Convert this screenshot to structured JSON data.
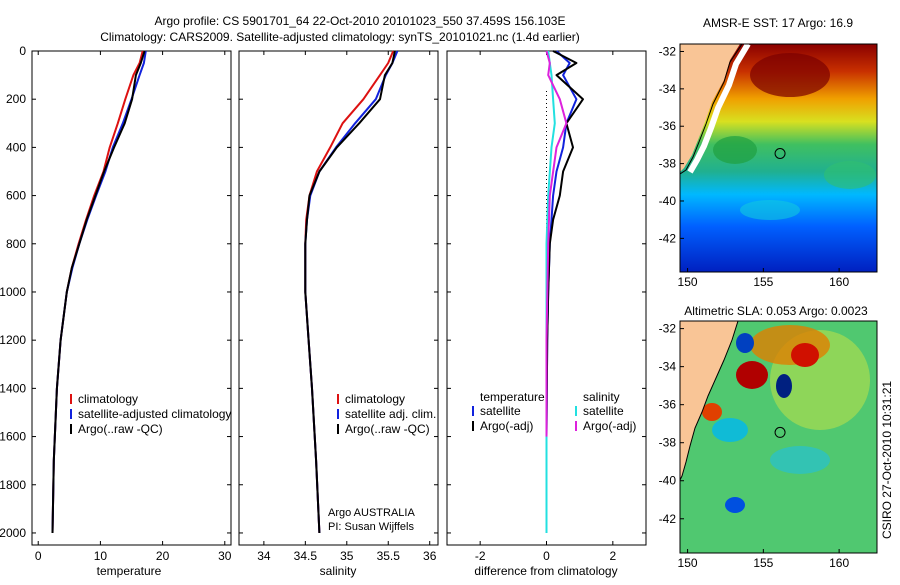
{
  "header": {
    "title_line1": "Argo profile: CS 5901701_64 22-Oct-2010 20101023_550 37.459S 156.103E",
    "title_line2": "Climatology: CARS2009. Satellite-adjusted climatology: synTS_20101021.nc (1.4d earlier)"
  },
  "depth_ticks": [
    "0",
    "200",
    "400",
    "600",
    "800",
    "1000",
    "1200",
    "1400",
    "1600",
    "1800",
    "2000"
  ],
  "credit": "CSIRO 27-Oct-2010 10:31:21",
  "colors": {
    "climatology": "#dd1111",
    "satellite": "#1122dd",
    "argo": "#000000",
    "salinity_sat": "#22e0e0",
    "salinity_argo": "#dd22dd",
    "land": "#f9c596"
  },
  "chart_data": [
    {
      "type": "line",
      "id": "temperature",
      "xlabel": "temperature",
      "xlim": [
        -1,
        31
      ],
      "ylim": [
        2050,
        0
      ],
      "xticks": [
        "0",
        "10",
        "20",
        "30"
      ],
      "xtick_values": [
        0,
        10,
        20,
        30
      ],
      "legend": [
        "climatology",
        "satellite-adjusted climatology",
        "Argo(..raw -QC)"
      ],
      "series": [
        {
          "name": "climatology",
          "color": "#dd1111",
          "x": [
            16.8,
            16.3,
            15.3,
            14.0,
            12.8,
            11.5,
            10.5,
            9.0,
            7.7,
            6.5,
            5.4,
            4.6,
            3.6,
            3.0,
            2.5,
            2.3
          ],
          "y": [
            0,
            50,
            100,
            200,
            300,
            400,
            500,
            600,
            700,
            800,
            900,
            1000,
            1200,
            1400,
            1700,
            2000
          ]
        },
        {
          "name": "satellite-adjusted climatology",
          "color": "#1122dd",
          "x": [
            17.3,
            17.0,
            16.3,
            15.0,
            13.6,
            12.0,
            10.8,
            9.3,
            7.9,
            6.6,
            5.5,
            4.6,
            3.6,
            3.0,
            2.5,
            2.3
          ],
          "y": [
            0,
            50,
            100,
            200,
            300,
            400,
            500,
            600,
            700,
            800,
            900,
            1000,
            1200,
            1400,
            1700,
            2000
          ]
        },
        {
          "name": "Argo(..raw -QC)",
          "color": "#000000",
          "x": [
            17.1,
            16.5,
            15.7,
            15.1,
            13.9,
            12.2,
            10.6,
            9.2,
            7.8,
            6.6,
            5.4,
            4.6,
            3.6,
            3.0,
            2.5,
            2.3
          ],
          "y": [
            0,
            50,
            100,
            200,
            300,
            400,
            500,
            600,
            700,
            800,
            900,
            1000,
            1200,
            1400,
            1700,
            2000
          ]
        }
      ]
    },
    {
      "type": "line",
      "id": "salinity",
      "xlabel": "salinity",
      "xlim": [
        33.7,
        36.1
      ],
      "ylim": [
        2050,
        0
      ],
      "xticks": [
        "34",
        "34.5",
        "35",
        "35.5",
        "36"
      ],
      "xtick_values": [
        34,
        34.5,
        35,
        35.5,
        36
      ],
      "legend": [
        "climatology",
        "satellite adj. clim.",
        "Argo(..raw -QC)"
      ],
      "annotation": [
        "Argo AUSTRALIA",
        "PI: Susan Wijffels"
      ],
      "series": [
        {
          "name": "climatology",
          "color": "#dd1111",
          "x": [
            35.56,
            35.5,
            35.4,
            35.2,
            34.95,
            34.8,
            34.64,
            34.55,
            34.51,
            34.5,
            34.5,
            34.5,
            34.54,
            34.58,
            34.63,
            34.67
          ],
          "y": [
            0,
            50,
            100,
            200,
            300,
            400,
            500,
            600,
            700,
            800,
            900,
            1000,
            1200,
            1400,
            1700,
            2000
          ]
        },
        {
          "name": "satellite adj. clim.",
          "color": "#1122dd",
          "x": [
            35.61,
            35.55,
            35.47,
            35.35,
            35.1,
            34.87,
            34.67,
            34.56,
            34.52,
            34.5,
            34.5,
            34.5,
            34.54,
            34.58,
            34.63,
            34.67
          ],
          "y": [
            0,
            50,
            100,
            200,
            300,
            400,
            500,
            600,
            700,
            800,
            900,
            1000,
            1200,
            1400,
            1700,
            2000
          ]
        },
        {
          "name": "Argo(..raw -QC)",
          "color": "#000000",
          "x": [
            35.58,
            35.55,
            35.46,
            35.4,
            35.15,
            34.88,
            34.67,
            34.55,
            34.52,
            34.5,
            34.5,
            34.5,
            34.54,
            34.58,
            34.63,
            34.67
          ],
          "y": [
            0,
            50,
            100,
            200,
            300,
            400,
            500,
            600,
            700,
            800,
            900,
            1000,
            1200,
            1400,
            1700,
            2000
          ]
        }
      ]
    },
    {
      "type": "line",
      "id": "difference",
      "xlabel": "difference from climatology",
      "xlim": [
        -3,
        3
      ],
      "ylim": [
        2050,
        0
      ],
      "xticks": [
        "-2",
        "0",
        "2"
      ],
      "xtick_values": [
        -2,
        0,
        2
      ],
      "legend_headers": [
        "temperature",
        "salinity"
      ],
      "legend": [
        "satellite",
        "Argo(-adj)",
        "satellite",
        "Argo(-adj)"
      ],
      "series": [
        {
          "name": "temperature satellite",
          "color": "#1122dd",
          "x": [
            0.3,
            0.7,
            0.5,
            0.9,
            0.6,
            0.5,
            0.3,
            0.2,
            0.15,
            0.1,
            0.05,
            0.02,
            0.0,
            0.0
          ],
          "y": [
            0,
            50,
            100,
            200,
            300,
            400,
            500,
            600,
            700,
            800,
            1000,
            1200,
            1600,
            2000
          ]
        },
        {
          "name": "temperature Argo(-adj)",
          "color": "#000000",
          "x": [
            0.2,
            0.9,
            0.3,
            1.1,
            0.6,
            0.8,
            0.5,
            0.4,
            0.2,
            0.1,
            0.05,
            0.02,
            0.0,
            0.0
          ],
          "y": [
            0,
            50,
            100,
            200,
            300,
            400,
            500,
            600,
            700,
            800,
            1000,
            1200,
            1600,
            2000
          ]
        },
        {
          "name": "salinity satellite",
          "color": "#22e0e0",
          "x": [
            0.05,
            0.1,
            0.15,
            0.2,
            0.25,
            0.15,
            0.05,
            0.0,
            0.0,
            0.0,
            0.0
          ],
          "y": [
            0,
            50,
            100,
            200,
            300,
            400,
            600,
            800,
            1200,
            1600,
            2000
          ]
        },
        {
          "name": "salinity Argo(-adj)",
          "color": "#dd22dd",
          "x": [
            0.0,
            0.1,
            0.05,
            0.4,
            0.6,
            0.3,
            0.1,
            0.05,
            0.0,
            0.0
          ],
          "y": [
            0,
            50,
            100,
            200,
            300,
            400,
            600,
            800,
            1200,
            1600
          ]
        }
      ]
    },
    {
      "type": "heatmap",
      "id": "sst_map",
      "title": "AMSR-E SST: 17 Argo: 16.9",
      "xticks": [
        "150",
        "155",
        "160"
      ],
      "xtick_values": [
        150,
        155,
        160
      ],
      "yticks": [
        "-32",
        "-34",
        "-36",
        "-38",
        "-40",
        "-42"
      ],
      "ytick_values": [
        -32,
        -34,
        -36,
        -38,
        -40,
        -42
      ],
      "xlim": [
        149.5,
        162.5
      ],
      "ylim": [
        -43.8,
        -31.6
      ],
      "float_position": [
        156.103,
        -37.459
      ]
    },
    {
      "type": "heatmap",
      "id": "sla_map",
      "title": "Altimetric SLA: 0.053 Argo: 0.0023",
      "xticks": [
        "150",
        "155",
        "160"
      ],
      "xtick_values": [
        150,
        155,
        160
      ],
      "yticks": [
        "-32",
        "-34",
        "-36",
        "-38",
        "-40",
        "-42"
      ],
      "ytick_values": [
        -32,
        -34,
        -36,
        -38,
        -40,
        -42
      ],
      "xlim": [
        149.5,
        162.5
      ],
      "ylim": [
        -43.8,
        -31.6
      ],
      "float_position": [
        156.103,
        -37.459
      ]
    }
  ]
}
